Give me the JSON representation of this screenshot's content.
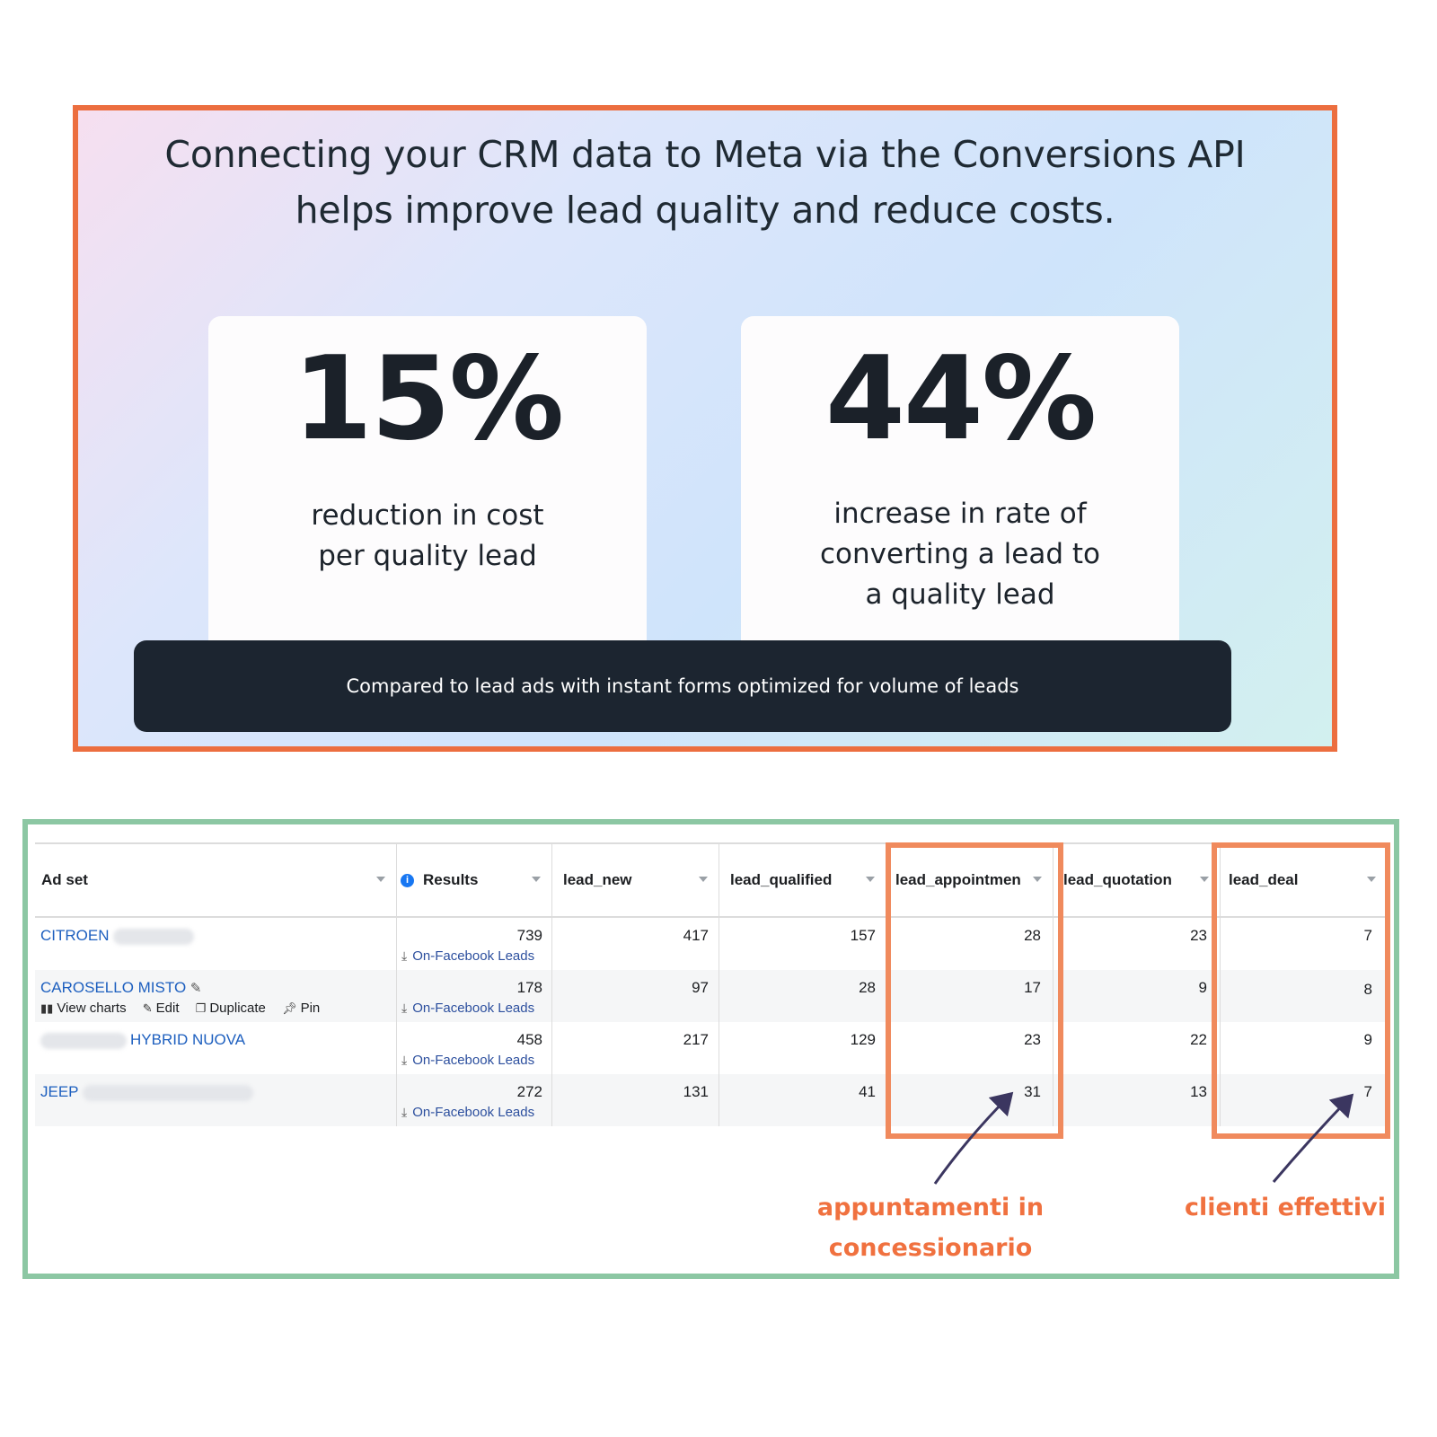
{
  "promo": {
    "headline_line1": "Connecting your CRM data to Meta via the Conversions API",
    "headline_line2": "helps improve lead quality and reduce costs.",
    "stats": [
      {
        "value": "15%",
        "description": "reduction in cost\nper quality lead"
      },
      {
        "value": "44%",
        "description": "increase in rate of\nconverting a lead to\na quality lead"
      }
    ],
    "footnote": "Compared to lead ads with instant forms optimized for volume of leads",
    "border_color": "#ec6e3f"
  },
  "table": {
    "headers": [
      "Ad set",
      "Results",
      "lead_new",
      "lead_qualified",
      "lead_appointment",
      "lead_quotation",
      "lead_deal"
    ],
    "result_type_label": "On-Facebook Leads",
    "row_actions": [
      "View charts",
      "Edit",
      "Duplicate",
      "Pin"
    ],
    "rows": [
      {
        "name": "CITROEN",
        "results": "739",
        "lead_new": "417",
        "lead_qualified": "157",
        "lead_appointment": "28",
        "lead_quotation": "23",
        "lead_deal": "7"
      },
      {
        "name": "CAROSELLO MISTO",
        "results": "178",
        "lead_new": "97",
        "lead_qualified": "28",
        "lead_appointment": "17",
        "lead_quotation": "9",
        "lead_deal": "8"
      },
      {
        "name": "HYBRID NUOVA",
        "results": "458",
        "lead_new": "217",
        "lead_qualified": "129",
        "lead_appointment": "23",
        "lead_quotation": "22",
        "lead_deal": "9"
      },
      {
        "name": "JEEP",
        "results": "272",
        "lead_new": "131",
        "lead_qualified": "41",
        "lead_appointment": "31",
        "lead_quotation": "13",
        "lead_deal": "7"
      }
    ],
    "border_color": "#8cc7a3",
    "link_color": "#1d5fbf"
  },
  "annotations": {
    "appointment_note": "appuntamenti in\nconcessionario",
    "deal_note": "clienti effettivi",
    "color": "#f0713f"
  }
}
